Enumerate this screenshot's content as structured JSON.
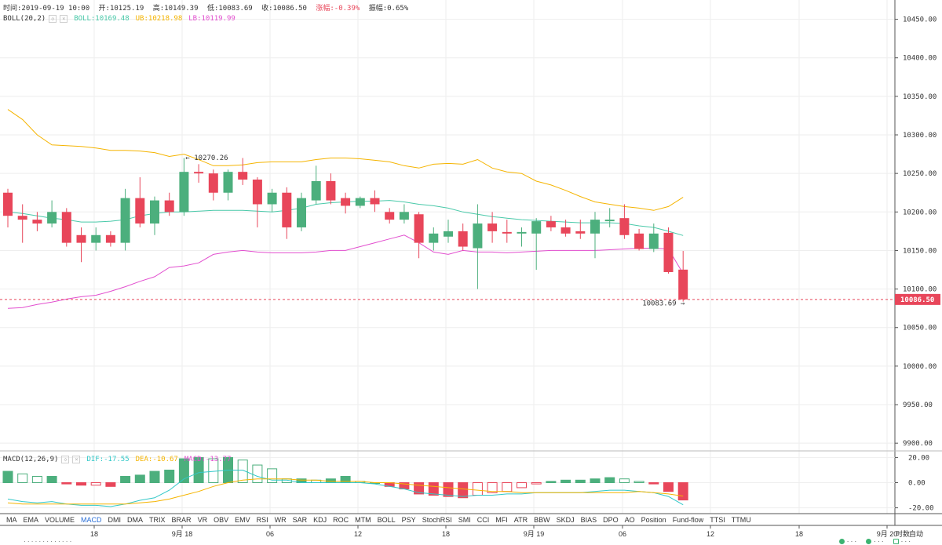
{
  "header": {
    "time": "时间:2019-09-19 10:00",
    "open": "开:10125.19",
    "high": "高:10149.39",
    "low": "低:10083.69",
    "close": "收:10086.50",
    "change": "涨幅:-0.39%",
    "amplitude": "振幅:0.65%"
  },
  "boll_legend": {
    "name": "BOLL(20,2)",
    "mid": "BOLL:10169.48",
    "ub": "UB:10218.98",
    "lb": "LB:10119.99"
  },
  "macd_legend": {
    "name": "MACD(12,26,9)",
    "dif": "DIF:-17.55",
    "dea": "DEA:-10.67",
    "macd": "MACD:-13.77"
  },
  "indicators": [
    "MA",
    "EMA",
    "VOLUME",
    "MACD",
    "DMI",
    "DMA",
    "TRIX",
    "BRAR",
    "VR",
    "OBV",
    "EMV",
    "RSI",
    "WR",
    "SAR",
    "KDJ",
    "ROC",
    "MTM",
    "BOLL",
    "PSY",
    "StochRSI",
    "SMI",
    "CCI",
    "MFI",
    "ATR",
    "BBW",
    "SKDJ",
    "BIAS",
    "DPO",
    "AO",
    "Position",
    "Fund-flow",
    "TTSI",
    "TTMU"
  ],
  "active_indicator": "MACD",
  "auto_label": "自动",
  "footer": {
    "left": "· · · · · · · · · · · · ·",
    "right_items": [
      "· · ·",
      "· · ·",
      "· · ·"
    ]
  },
  "colors": {
    "up": "#4caf7d",
    "down": "#e8465a",
    "mid": "#49c9a9",
    "ub": "#f5b400",
    "lb": "#e24fcf",
    "dif": "#31c8c8",
    "dea": "#f5b400",
    "grid": "#eeeeee",
    "price_line": "#e8465a"
  },
  "chart_data": {
    "type": "candlestick",
    "interval_note": "",
    "x_tick_labels": [
      "18",
      "9月 18",
      "06",
      "12",
      "18",
      "9月 19",
      "06",
      "12",
      "18",
      "9月 20",
      "时数"
    ],
    "price_axis": {
      "ticks": [
        10450,
        10400,
        10350,
        10300,
        10250,
        10200,
        10150,
        10100,
        10050,
        10000,
        9950,
        9900
      ],
      "tick_labels": [
        "10450.00",
        "10400.00",
        "10350.00",
        "10300.00",
        "10250.00",
        "10200.00",
        "10150.00",
        "10100.00",
        "10050.00",
        "10000.00",
        "9950.00",
        "9900.00"
      ],
      "range": [
        9890,
        10475
      ]
    },
    "last_price_label": "10086.50",
    "annotations": [
      {
        "text": "← 10270.26",
        "price": 10270.26,
        "candle": 12
      },
      {
        "text": "10083.69 →",
        "price": 10083.69,
        "candle": 46
      }
    ],
    "candles": [
      {
        "o": 10225,
        "h": 10230,
        "l": 10180,
        "c": 10195
      },
      {
        "o": 10195,
        "h": 10210,
        "l": 10160,
        "c": 10190
      },
      {
        "o": 10190,
        "h": 10200,
        "l": 10175,
        "c": 10185
      },
      {
        "o": 10185,
        "h": 10215,
        "l": 10180,
        "c": 10200
      },
      {
        "o": 10200,
        "h": 10205,
        "l": 10155,
        "c": 10160
      },
      {
        "o": 10170,
        "h": 10180,
        "l": 10135,
        "c": 10160
      },
      {
        "o": 10160,
        "h": 10180,
        "l": 10150,
        "c": 10170
      },
      {
        "o": 10170,
        "h": 10175,
        "l": 10155,
        "c": 10160
      },
      {
        "o": 10160,
        "h": 10230,
        "l": 10150,
        "c": 10218
      },
      {
        "o": 10218,
        "h": 10245,
        "l": 10180,
        "c": 10185
      },
      {
        "o": 10185,
        "h": 10220,
        "l": 10170,
        "c": 10215
      },
      {
        "o": 10215,
        "h": 10225,
        "l": 10195,
        "c": 10200
      },
      {
        "o": 10200,
        "h": 10270,
        "l": 10195,
        "c": 10252
      },
      {
        "o": 10252,
        "h": 10262,
        "l": 10238,
        "c": 10250
      },
      {
        "o": 10250,
        "h": 10255,
        "l": 10215,
        "c": 10225
      },
      {
        "o": 10225,
        "h": 10255,
        "l": 10215,
        "c": 10252
      },
      {
        "o": 10252,
        "h": 10270,
        "l": 10235,
        "c": 10242
      },
      {
        "o": 10242,
        "h": 10245,
        "l": 10180,
        "c": 10210
      },
      {
        "o": 10210,
        "h": 10230,
        "l": 10200,
        "c": 10225
      },
      {
        "o": 10225,
        "h": 10232,
        "l": 10165,
        "c": 10180
      },
      {
        "o": 10180,
        "h": 10225,
        "l": 10175,
        "c": 10218
      },
      {
        "o": 10215,
        "h": 10260,
        "l": 10210,
        "c": 10240
      },
      {
        "o": 10240,
        "h": 10250,
        "l": 10210,
        "c": 10215
      },
      {
        "o": 10218,
        "h": 10225,
        "l": 10198,
        "c": 10208
      },
      {
        "o": 10208,
        "h": 10220,
        "l": 10205,
        "c": 10218
      },
      {
        "o": 10218,
        "h": 10228,
        "l": 10200,
        "c": 10210
      },
      {
        "o": 10200,
        "h": 10205,
        "l": 10185,
        "c": 10190
      },
      {
        "o": 10190,
        "h": 10210,
        "l": 10185,
        "c": 10200
      },
      {
        "o": 10197,
        "h": 10200,
        "l": 10140,
        "c": 10160
      },
      {
        "o": 10160,
        "h": 10180,
        "l": 10150,
        "c": 10172
      },
      {
        "o": 10168,
        "h": 10190,
        "l": 10160,
        "c": 10175
      },
      {
        "o": 10175,
        "h": 10185,
        "l": 10150,
        "c": 10155
      },
      {
        "o": 10153,
        "h": 10210,
        "l": 10100,
        "c": 10185
      },
      {
        "o": 10185,
        "h": 10200,
        "l": 10160,
        "c": 10175
      },
      {
        "o": 10174,
        "h": 10190,
        "l": 10160,
        "c": 10172
      },
      {
        "o": 10172,
        "h": 10180,
        "l": 10155,
        "c": 10174
      },
      {
        "o": 10172,
        "h": 10192,
        "l": 10125,
        "c": 10188
      },
      {
        "o": 10188,
        "h": 10195,
        "l": 10175,
        "c": 10180
      },
      {
        "o": 10180,
        "h": 10190,
        "l": 10168,
        "c": 10172
      },
      {
        "o": 10175,
        "h": 10190,
        "l": 10165,
        "c": 10172
      },
      {
        "o": 10172,
        "h": 10200,
        "l": 10140,
        "c": 10190
      },
      {
        "o": 10188,
        "h": 10205,
        "l": 10180,
        "c": 10190
      },
      {
        "o": 10192,
        "h": 10210,
        "l": 10165,
        "c": 10170
      },
      {
        "o": 10172,
        "h": 10178,
        "l": 10150,
        "c": 10152
      },
      {
        "o": 10152,
        "h": 10185,
        "l": 10148,
        "c": 10172
      },
      {
        "o": 10173,
        "h": 10180,
        "l": 10120,
        "c": 10122
      },
      {
        "o": 10125.19,
        "h": 10149.39,
        "l": 10083.69,
        "c": 10086.5
      }
    ],
    "boll_mid": [
      10200,
      10198,
      10195,
      10192,
      10190,
      10187,
      10187,
      10188,
      10190,
      10195,
      10198,
      10200,
      10200,
      10201,
      10202,
      10202,
      10202,
      10201,
      10200,
      10202,
      10205,
      10210,
      10212,
      10213,
      10214,
      10214,
      10215,
      10213,
      10210,
      10208,
      10205,
      10200,
      10197,
      10194,
      10192,
      10190,
      10189,
      10188,
      10187,
      10186,
      10186,
      10186,
      10185,
      10182,
      10180,
      10175,
      10169.48
    ],
    "boll_ub": [
      10333,
      10320,
      10300,
      10287,
      10286,
      10285,
      10283,
      10280,
      10280,
      10279,
      10277,
      10272,
      10275,
      10268,
      10260,
      10260,
      10261,
      10264,
      10265,
      10265,
      10265,
      10268,
      10270,
      10270,
      10269,
      10267,
      10265,
      10260,
      10257,
      10262,
      10263,
      10262,
      10268,
      10257,
      10252,
      10250,
      10240,
      10235,
      10228,
      10220,
      10213,
      10210,
      10207,
      10205,
      10202,
      10207,
      10218.98
    ],
    "boll_lb": [
      10075,
      10076,
      10080,
      10083,
      10087,
      10090,
      10092,
      10097,
      10103,
      10110,
      10116,
      10128,
      10130,
      10134,
      10145,
      10148,
      10150,
      10148,
      10147,
      10147,
      10147,
      10148,
      10150,
      10150,
      10155,
      10160,
      10165,
      10170,
      10160,
      10148,
      10145,
      10150,
      10148,
      10148,
      10147,
      10148,
      10149,
      10150,
      10150,
      10150,
      10150,
      10151,
      10152,
      10153,
      10153,
      10152,
      10119.99
    ],
    "macd_axis": {
      "ticks": [
        20,
        0,
        -20
      ],
      "tick_labels": [
        "20.00",
        "0.00",
        "-20.00"
      ],
      "range": [
        -24,
        24
      ]
    },
    "macd_hist": [
      9,
      7,
      5,
      5,
      -1,
      -2,
      -2,
      -3,
      5,
      6,
      9,
      10,
      19,
      20,
      19,
      20,
      18,
      14,
      11,
      3,
      3,
      2,
      3,
      5,
      1,
      0,
      -3,
      -5,
      -9,
      -10,
      -11,
      -12,
      -10,
      -8,
      -7,
      -4,
      -1,
      1,
      2,
      2,
      3,
      4,
      3,
      1,
      -1,
      -7,
      -13.77
    ],
    "macd_dif": [
      -13,
      -15,
      -16,
      -15,
      -17,
      -18,
      -18,
      -19,
      -17,
      -14,
      -12,
      -6,
      3,
      8,
      9,
      10,
      10,
      5,
      2,
      2,
      0,
      0,
      0,
      0,
      0,
      -1,
      -3,
      -5,
      -8,
      -9,
      -10,
      -11,
      -10,
      -10,
      -9,
      -9,
      -8,
      -8,
      -8,
      -8,
      -7,
      -6,
      -6,
      -7,
      -8,
      -11,
      -17.55
    ],
    "macd_dea": [
      -16,
      -17,
      -17,
      -17,
      -17,
      -17,
      -17,
      -17,
      -17,
      -16,
      -15,
      -13,
      -10,
      -7,
      -3,
      0,
      2,
      3,
      3,
      3,
      2,
      2,
      1,
      1,
      1,
      0,
      0,
      -1,
      -2,
      -3,
      -4,
      -5,
      -6,
      -7,
      -7,
      -8,
      -8,
      -8,
      -8,
      -8,
      -8,
      -8,
      -8,
      -7,
      -8,
      -9,
      -10.67
    ]
  }
}
